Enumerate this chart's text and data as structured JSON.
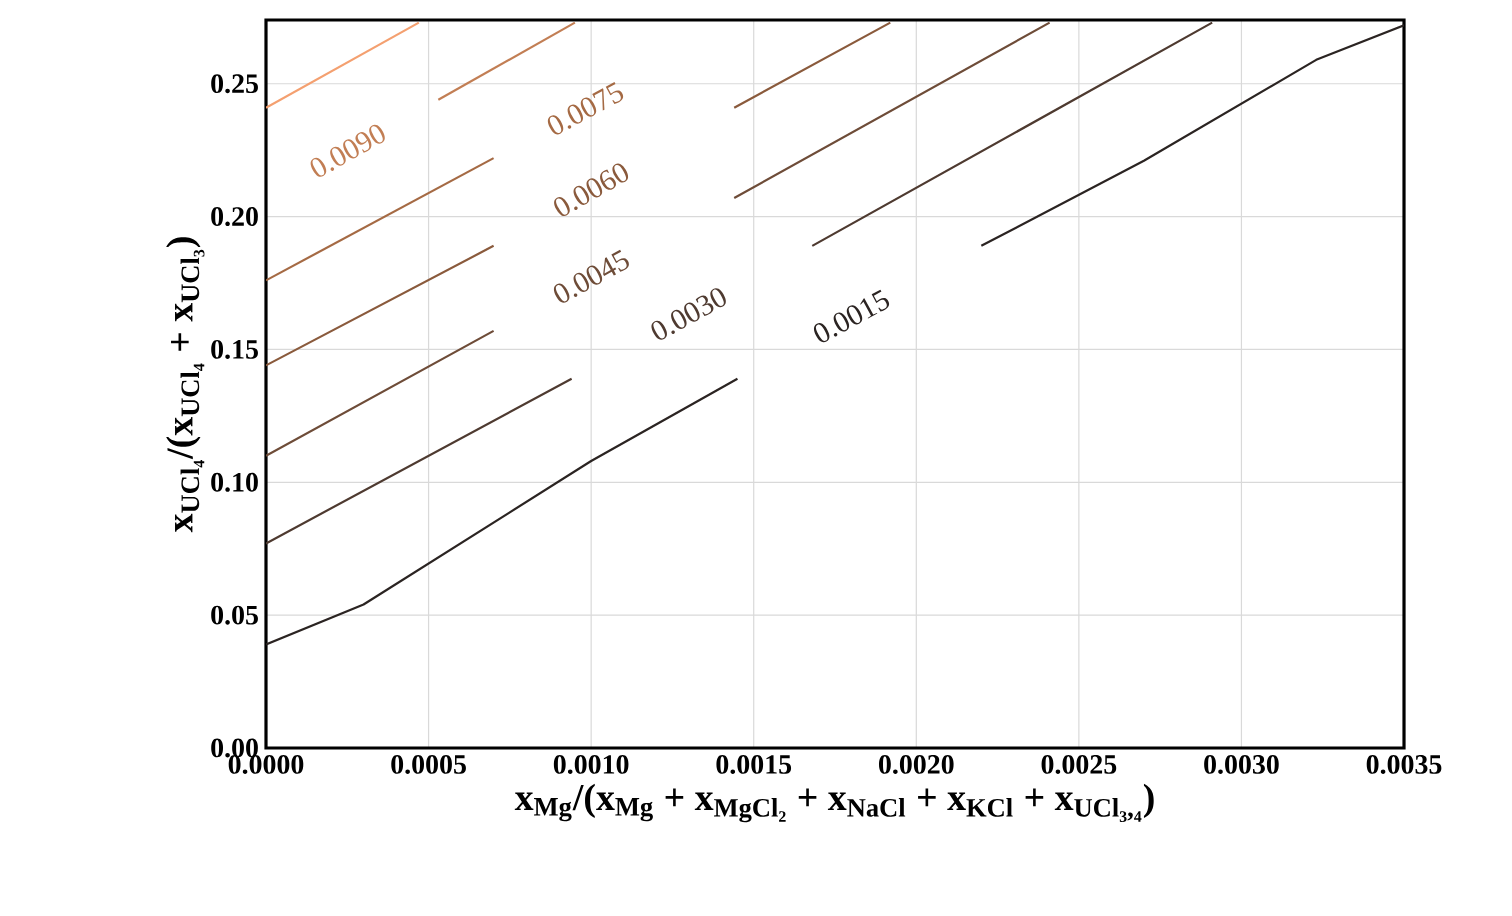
{
  "chart_data": {
    "type": "line",
    "xlabel": "x$_{Mg}$/(x$_{Mg}$ + x$_{MgCl₂}$ + x$_{NaCl}$ + x$_{KCl}$ + x$_{UCl₃,₄}$)",
    "ylabel": "x$_{UCl₄}$/(x$_{UCl₄}$ + x$_{UCl₃}$)",
    "xlim": [
      0,
      0.0035
    ],
    "ylim": [
      0,
      0.274
    ],
    "xticks": [
      {
        "value": 0,
        "label": "0.0000"
      },
      {
        "value": 0.0005,
        "label": "0.0005"
      },
      {
        "value": 0.001,
        "label": "0.0010"
      },
      {
        "value": 0.0015,
        "label": "0.0015"
      },
      {
        "value": 0.002,
        "label": "0.0020"
      },
      {
        "value": 0.0025,
        "label": "0.0025"
      },
      {
        "value": 0.003,
        "label": "0.0030"
      },
      {
        "value": 0.0035,
        "label": "0.0035"
      }
    ],
    "yticks": [
      {
        "value": 0,
        "label": "0.00"
      },
      {
        "value": 0.05,
        "label": "0.05"
      },
      {
        "value": 0.1,
        "label": "0.10"
      },
      {
        "value": 0.15,
        "label": "0.15"
      },
      {
        "value": 0.2,
        "label": "0.20"
      },
      {
        "value": 0.25,
        "label": "0.25"
      }
    ],
    "grid": true,
    "series": [
      {
        "name": "0.0015",
        "color": "#2b2422",
        "x": [
          0,
          0.0003,
          0.001,
          0.00145,
          0.0018,
          0.0022,
          0.0027,
          0.00323,
          0.0035
        ],
        "values": [
          0.039,
          0.054,
          0.108,
          0.139,
          null,
          0.189,
          0.221,
          0.259,
          0.272
        ]
      },
      {
        "name": "0.0030",
        "color": "#4e3a30",
        "x": [
          0,
          0.00094,
          0.0013,
          0.00168,
          0.00291
        ],
        "values": [
          0.077,
          0.139,
          null,
          0.189,
          0.273
        ]
      },
      {
        "name": "0.0045",
        "color": "#6e4c38",
        "x": [
          0,
          0.0007,
          0.001,
          0.00144,
          0.00241
        ],
        "values": [
          0.11,
          0.157,
          null,
          0.207,
          0.273
        ]
      },
      {
        "name": "0.0060",
        "color": "#8a5a3c",
        "x": [
          0,
          0.0007,
          0.001,
          0.00144,
          0.00192
        ],
        "values": [
          0.144,
          0.189,
          null,
          0.241,
          0.273
        ]
      },
      {
        "name": "0.0075",
        "color": "#a56a44",
        "x": [
          0,
          0.0007
        ],
        "values": [
          0.176,
          0.222
        ]
      },
      {
        "name": "0.0090",
        "color": "#c27e54",
        "x": [
          0.00053,
          0.00095
        ],
        "values": [
          0.244,
          0.273
        ]
      },
      {
        "color": "#f4a070",
        "x": [
          0,
          0.00047
        ],
        "values": [
          0.241,
          0.273
        ]
      }
    ]
  }
}
